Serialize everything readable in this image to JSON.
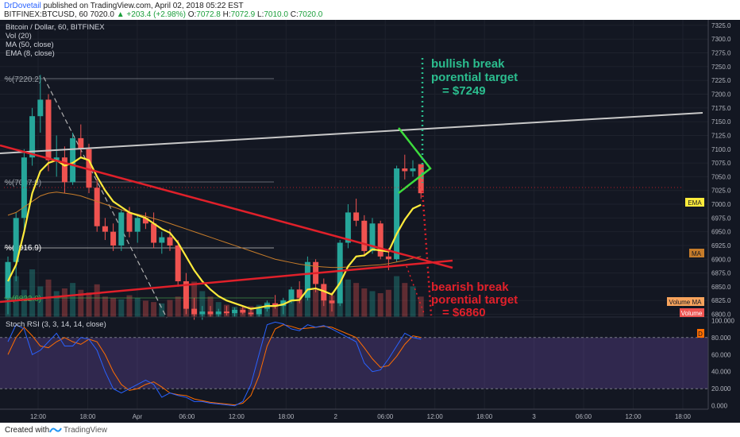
{
  "header": {
    "author": "DrDovetail",
    "published_text": " published on TradingView.com, April 02, 2018 05:22 EST",
    "symbol": "BITFINEX:BTCUSD, 60",
    "last": "7020.0",
    "change": "+203.4 (+2.98%)",
    "o_label": "O:",
    "o_val": "7072.8",
    "h_label": "H:",
    "h_val": "7072.9",
    "l_label": "L:",
    "l_val": "7010.0",
    "c_label": "C:",
    "c_val": "7020.0"
  },
  "legend": {
    "title": "Bitcoin / Dollar, 60, BITFINEX",
    "vol": "Vol (20)",
    "ma": "MA (50, close)",
    "ema": "EMA (8, close)"
  },
  "stoch": {
    "label": "Stoch RSI (3, 3, 14, 14, close)",
    "d_tag": "D"
  },
  "tags": {
    "ema": "EMA",
    "ma": "MA",
    "volume_ma": "Volume MA",
    "volume": "Volume"
  },
  "fib_labels": [
    "%(7220.2)",
    "%(7037.8)",
    "%(6916.9)",
    "%(6822.0)"
  ],
  "annotations": {
    "bull1": "bullish break",
    "bull2": "porential target",
    "bull3": "= $7249",
    "bear1": "bearish break",
    "bear2": "porential target",
    "bear3": "= $6860"
  },
  "footer": {
    "created": "Created with",
    "brand": "TradingView"
  },
  "colors": {
    "up": "#26a69a",
    "down": "#ef5350",
    "ema": "#ffeb3b",
    "ma": "#c67c2a",
    "stoch_k": "#2962ff",
    "stoch_d": "#ff6d00",
    "bull": "#2bbd8e",
    "bear": "#e0202a"
  },
  "chart_data": {
    "type": "candlestick",
    "price_axis": {
      "ticks": [
        "7325.0",
        "7300.0",
        "7275.0",
        "7250.0",
        "7225.0",
        "7200.0",
        "7175.0",
        "7150.0",
        "7125.0",
        "7100.0",
        "7075.0",
        "7050.0",
        "7025.0",
        "7000.0",
        "6975.0",
        "6950.0",
        "6925.0",
        "6900.0",
        "6875.0",
        "6850.0",
        "6825.0",
        "6800.0"
      ],
      "range": [
        6795,
        7335
      ]
    },
    "stoch_axis": {
      "ticks": [
        "100.000",
        "80.000",
        "60.000",
        "40.000",
        "20.000",
        "0.000"
      ],
      "range": [
        -4,
        104
      ]
    },
    "time_axis": {
      "labels": [
        "12:00",
        "18:00",
        "Apr",
        "06:00",
        "12:00",
        "18:00",
        "2",
        "06:00",
        "12:00",
        "18:00",
        "3",
        "06:00",
        "12:00",
        "18:00"
      ]
    },
    "candles": [
      {
        "o": 6830,
        "h": 6905,
        "l": 6800,
        "c": 6895
      },
      {
        "o": 6895,
        "h": 6985,
        "l": 6860,
        "c": 6975
      },
      {
        "o": 6975,
        "h": 7100,
        "l": 6950,
        "c": 7085
      },
      {
        "o": 7085,
        "h": 7175,
        "l": 7070,
        "c": 7160
      },
      {
        "o": 7160,
        "h": 7235,
        "l": 7130,
        "c": 7190
      },
      {
        "o": 7190,
        "h": 7200,
        "l": 7060,
        "c": 7080
      },
      {
        "o": 7080,
        "h": 7125,
        "l": 7050,
        "c": 7085
      },
      {
        "o": 7085,
        "h": 7105,
        "l": 7020,
        "c": 7040
      },
      {
        "o": 7040,
        "h": 7130,
        "l": 7035,
        "c": 7120
      },
      {
        "o": 7120,
        "h": 7145,
        "l": 7085,
        "c": 7100
      },
      {
        "o": 7100,
        "h": 7110,
        "l": 7020,
        "c": 7030
      },
      {
        "o": 7030,
        "h": 7045,
        "l": 6950,
        "c": 6960
      },
      {
        "o": 6960,
        "h": 6975,
        "l": 6935,
        "c": 6950
      },
      {
        "o": 6950,
        "h": 6965,
        "l": 6915,
        "c": 6925
      },
      {
        "o": 6925,
        "h": 6990,
        "l": 6915,
        "c": 6985
      },
      {
        "o": 6985,
        "h": 6995,
        "l": 6940,
        "c": 6950
      },
      {
        "o": 6950,
        "h": 6980,
        "l": 6930,
        "c": 6975
      },
      {
        "o": 6975,
        "h": 6985,
        "l": 6955,
        "c": 6965
      },
      {
        "o": 6965,
        "h": 6985,
        "l": 6920,
        "c": 6930
      },
      {
        "o": 6930,
        "h": 6950,
        "l": 6910,
        "c": 6940
      },
      {
        "o": 6940,
        "h": 6955,
        "l": 6915,
        "c": 6925
      },
      {
        "o": 6925,
        "h": 6935,
        "l": 6850,
        "c": 6860
      },
      {
        "o": 6860,
        "h": 6875,
        "l": 6800,
        "c": 6810
      },
      {
        "o": 6810,
        "h": 6830,
        "l": 6790,
        "c": 6800
      },
      {
        "o": 6800,
        "h": 6815,
        "l": 6790,
        "c": 6805
      },
      {
        "o": 6805,
        "h": 6815,
        "l": 6795,
        "c": 6800
      },
      {
        "o": 6800,
        "h": 6810,
        "l": 6795,
        "c": 6805
      },
      {
        "o": 6805,
        "h": 6815,
        "l": 6798,
        "c": 6802
      },
      {
        "o": 6802,
        "h": 6812,
        "l": 6796,
        "c": 6808
      },
      {
        "o": 6808,
        "h": 6815,
        "l": 6800,
        "c": 6803
      },
      {
        "o": 6803,
        "h": 6812,
        "l": 6796,
        "c": 6800
      },
      {
        "o": 6800,
        "h": 6815,
        "l": 6795,
        "c": 6810
      },
      {
        "o": 6810,
        "h": 6825,
        "l": 6805,
        "c": 6820
      },
      {
        "o": 6820,
        "h": 6835,
        "l": 6810,
        "c": 6815
      },
      {
        "o": 6815,
        "h": 6830,
        "l": 6800,
        "c": 6825
      },
      {
        "o": 6825,
        "h": 6850,
        "l": 6820,
        "c": 6845
      },
      {
        "o": 6845,
        "h": 6860,
        "l": 6820,
        "c": 6830
      },
      {
        "o": 6830,
        "h": 6905,
        "l": 6825,
        "c": 6895
      },
      {
        "o": 6895,
        "h": 6900,
        "l": 6840,
        "c": 6855
      },
      {
        "o": 6855,
        "h": 6865,
        "l": 6815,
        "c": 6825
      },
      {
        "o": 6825,
        "h": 6840,
        "l": 6805,
        "c": 6820
      },
      {
        "o": 6820,
        "h": 6935,
        "l": 6815,
        "c": 6930
      },
      {
        "o": 6930,
        "h": 7000,
        "l": 6920,
        "c": 6985
      },
      {
        "o": 6985,
        "h": 7010,
        "l": 6960,
        "c": 6970
      },
      {
        "o": 6970,
        "h": 6980,
        "l": 6905,
        "c": 6915
      },
      {
        "o": 6915,
        "h": 6975,
        "l": 6910,
        "c": 6965
      },
      {
        "o": 6965,
        "h": 6970,
        "l": 6900,
        "c": 6905
      },
      {
        "o": 6905,
        "h": 6920,
        "l": 6880,
        "c": 6900
      },
      {
        "o": 6900,
        "h": 7070,
        "l": 6895,
        "c": 7065
      },
      {
        "o": 7065,
        "h": 7090,
        "l": 7045,
        "c": 7060
      },
      {
        "o": 7060,
        "h": 7080,
        "l": 7050,
        "c": 7065
      },
      {
        "o": 7072.8,
        "h": 7072.9,
        "l": 7010,
        "c": 7020
      }
    ],
    "ema": [
      6860,
      6890,
      6950,
      7020,
      7060,
      7075,
      7080,
      7070,
      7075,
      7085,
      7080,
      7050,
      7025,
      7005,
      6995,
      6985,
      6980,
      6975,
      6965,
      6955,
      6948,
      6930,
      6905,
      6880,
      6860,
      6845,
      6833,
      6825,
      6820,
      6815,
      6810,
      6812,
      6815,
      6815,
      6818,
      6825,
      6826,
      6845,
      6847,
      6842,
      6836,
      6857,
      6887,
      6905,
      6907,
      6918,
      6916,
      6914,
      6946,
      6972,
      6992,
      6999
    ],
    "ma50": [
      6980,
      6985,
      6995,
      7005,
      7015,
      7020,
      7022,
      7020,
      7018,
      7015,
      7010,
      7005,
      7000,
      6995,
      6990,
      6985,
      6982,
      6978,
      6974,
      6970,
      6965,
      6960,
      6955,
      6950,
      6945,
      6940,
      6935,
      6930,
      6925,
      6920,
      6915,
      6910,
      6905,
      6900,
      6897,
      6894,
      6891,
      6889,
      6887,
      6886,
      6885,
      6885,
      6886,
      6887,
      6888,
      6889,
      6890,
      6892,
      6895,
      6898,
      6902,
      6905
    ],
    "volume": [
      35,
      60,
      40,
      70,
      45,
      55,
      38,
      42,
      50,
      40,
      36,
      48,
      30,
      28,
      26,
      32,
      28,
      24,
      22,
      20,
      25,
      30,
      45,
      52,
      38,
      30,
      22,
      18,
      15,
      14,
      16,
      18,
      22,
      20,
      25,
      28,
      30,
      35,
      40,
      38,
      32,
      45,
      55,
      50,
      42,
      38,
      35,
      40,
      60,
      50,
      45,
      30
    ],
    "stoch_k": [
      75,
      95,
      90,
      60,
      65,
      75,
      85,
      70,
      70,
      80,
      78,
      65,
      40,
      20,
      15,
      20,
      25,
      30,
      25,
      10,
      15,
      12,
      10,
      5,
      5,
      3,
      2,
      1,
      0,
      5,
      25,
      60,
      95,
      98,
      96,
      90,
      88,
      95,
      92,
      94,
      90,
      85,
      80,
      75,
      50,
      40,
      42,
      55,
      70,
      85,
      80,
      78
    ],
    "stoch_d": [
      60,
      80,
      92,
      82,
      70,
      68,
      75,
      80,
      75,
      72,
      78,
      75,
      60,
      40,
      25,
      18,
      20,
      25,
      28,
      22,
      15,
      13,
      12,
      8,
      6,
      4,
      3,
      2,
      1,
      3,
      12,
      35,
      70,
      90,
      95,
      93,
      90,
      91,
      92,
      93,
      92,
      88,
      84,
      80,
      68,
      55,
      45,
      47,
      58,
      72,
      82,
      80
    ]
  }
}
